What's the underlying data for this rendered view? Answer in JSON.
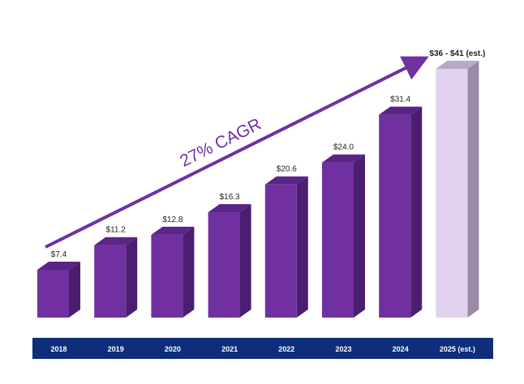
{
  "colors": {
    "bar_front": "#7030A0",
    "bar_top": "#5B2488",
    "bar_side": "#4B1E72",
    "est_front": "#E1D2F0",
    "est_top": "#B7AAC3",
    "est_side": "#9A8AA8",
    "axis_band": "#0E2D7A",
    "arrow": "#7030A0"
  },
  "chart_data": {
    "type": "bar",
    "categories": [
      "2018",
      "2019",
      "2020",
      "2021",
      "2022",
      "2023",
      "2024",
      "2025 (est.)"
    ],
    "values": [
      7.4,
      11.2,
      12.8,
      16.3,
      20.6,
      24.0,
      31.4,
      38.5
    ],
    "estimate_range": [
      36,
      41
    ],
    "value_labels": [
      "$7.4",
      "$11.2",
      "$12.8",
      "$16.3",
      "$20.6",
      "$24.0",
      "$31.4",
      "$36 - $41 (est.)"
    ],
    "estimated_index": 7,
    "annotation": "27% CAGR",
    "title": "",
    "xlabel": "",
    "ylabel": "",
    "ylim": [
      0,
      40
    ],
    "grid": false,
    "legend": "none"
  }
}
